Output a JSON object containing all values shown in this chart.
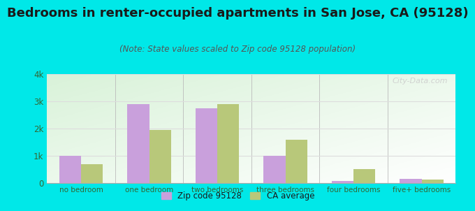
{
  "title": "Bedrooms in renter-occupied apartments in San Jose, CA (95128)",
  "subtitle": "(Note: State values scaled to Zip code 95128 population)",
  "categories": [
    "no bedroom",
    "one bedroom",
    "two bedrooms",
    "three bedrooms",
    "four bedrooms",
    "five+ bedrooms"
  ],
  "zip_values": [
    1000,
    2900,
    2750,
    1000,
    75,
    150
  ],
  "ca_values": [
    700,
    1950,
    2900,
    1575,
    500,
    125
  ],
  "zip_color": "#c9a0dc",
  "ca_color": "#b8c87a",
  "background_outer": "#00e8e8",
  "background_inner_topleft": "#d0edd8",
  "background_inner_topright": "#f5faf5",
  "background_inner_bottom": "#c8e8cc",
  "title_fontsize": 13,
  "subtitle_fontsize": 8.5,
  "ylim": [
    0,
    4000
  ],
  "yticks": [
    0,
    1000,
    2000,
    3000,
    4000
  ],
  "ytick_labels": [
    "0",
    "1k",
    "2k",
    "3k",
    "4k"
  ],
  "legend_zip_label": "Zip code 95128",
  "legend_ca_label": "CA average",
  "watermark": "City-Data.com",
  "tick_color": "#336633",
  "grid_color": "#dddddd"
}
